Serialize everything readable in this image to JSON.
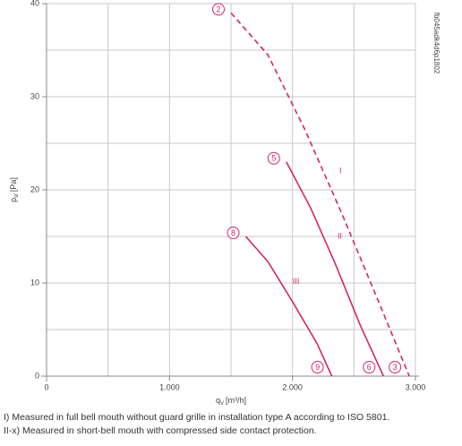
{
  "chart_data": {
    "type": "line",
    "xlabel": {
      "symbol": "q",
      "subscript": "V",
      "unit": "[m³/h]"
    },
    "ylabel": {
      "symbol": "p",
      "subscript": "sf",
      "unit": "[Pa]"
    },
    "code": "fb045adk4d6p1802",
    "xlim": [
      0,
      3000
    ],
    "xticks": [
      0,
      {
        "value": 1000,
        "label": "1.000"
      },
      {
        "value": 2000,
        "label": "2.000"
      },
      {
        "value": 3000,
        "label": "3.000"
      }
    ],
    "ylim": [
      0,
      40
    ],
    "yticks": [
      0,
      10,
      20,
      30,
      40
    ],
    "xgrid": [
      0,
      500,
      1000,
      1500,
      2000,
      2500,
      3000
    ],
    "ygrid": [
      0,
      5,
      10,
      15,
      20,
      25,
      30,
      35,
      40
    ],
    "grid": true,
    "series": [
      {
        "name": "I",
        "color": "#d4246e",
        "dashed": true,
        "start_label": "2",
        "end_label": "3",
        "x": [
          1500,
          1800,
          2100,
          2400,
          2700,
          2950
        ],
        "values": [
          39,
          34.5,
          26.5,
          17.5,
          8,
          0
        ]
      },
      {
        "name": "II",
        "color": "#d4246e",
        "dashed": false,
        "start_label": "5",
        "end_label": "6",
        "x": [
          1950,
          2150,
          2350,
          2550,
          2740
        ],
        "values": [
          23,
          18,
          12,
          5.5,
          0
        ]
      },
      {
        "name": "III",
        "color": "#d4246e",
        "dashed": false,
        "start_label": "8",
        "end_label": "9",
        "x": [
          1620,
          1800,
          2000,
          2200,
          2320
        ],
        "values": [
          15,
          12.3,
          8,
          3.5,
          0
        ]
      }
    ],
    "notes": [
      "I) Measured in full bell mouth without guard grille in installation type A according to ISO 5801.",
      "II-x) Measured in short-bell mouth with compressed side contact protection."
    ]
  }
}
